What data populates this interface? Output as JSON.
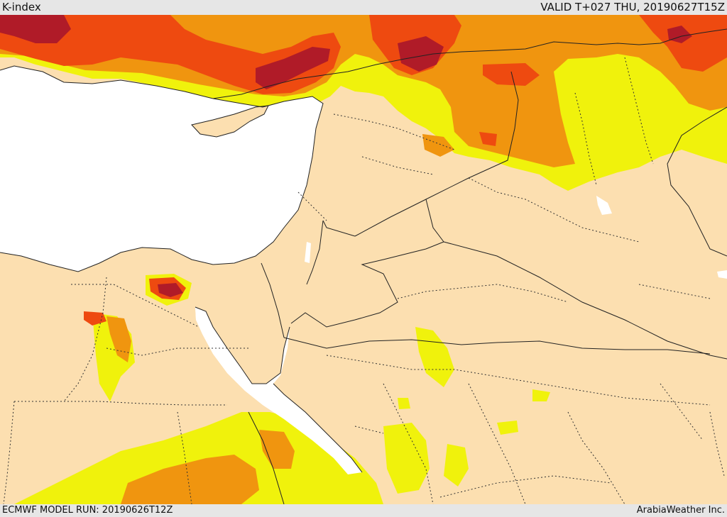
{
  "header": {
    "title": "K-index",
    "valid": "VALID T+027 THU, 20190627T15Z"
  },
  "footer": {
    "model_run": "ECMWF MODEL RUN: 20190626T12Z",
    "credit": "ArabiaWeather Inc."
  },
  "colors": {
    "land": "#fcdfb0",
    "sea": "#ffffff",
    "k_low": "#f0f20c",
    "k_mid": "#f0950f",
    "k_high": "#ee4a10",
    "k_very_high": "#b01b28",
    "border": "#222222"
  }
}
